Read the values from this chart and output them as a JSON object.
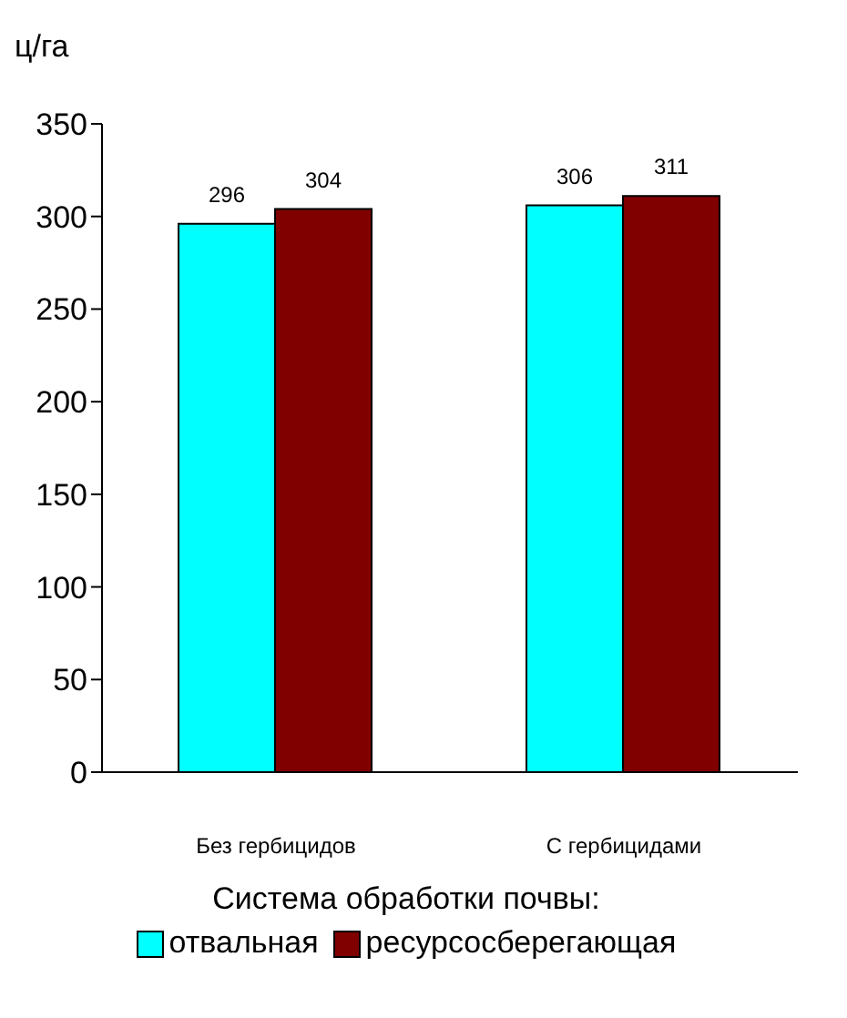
{
  "chart_data": {
    "type": "bar",
    "ylabel": "ц/га",
    "legend_title": "Система обработки почвы:",
    "categories": [
      "Без гербицидов",
      "С гербицидами"
    ],
    "series": [
      {
        "name": "отвальная",
        "color": "#00ffff",
        "values": [
          296,
          306
        ]
      },
      {
        "name": "ресурсосберегающая",
        "color": "#800000",
        "values": [
          304,
          311
        ]
      }
    ],
    "ylim": [
      0,
      350
    ],
    "yticks": [
      0,
      50,
      100,
      150,
      200,
      250,
      300,
      350
    ],
    "data_labels": true,
    "legend": "bottom",
    "grid": false
  }
}
